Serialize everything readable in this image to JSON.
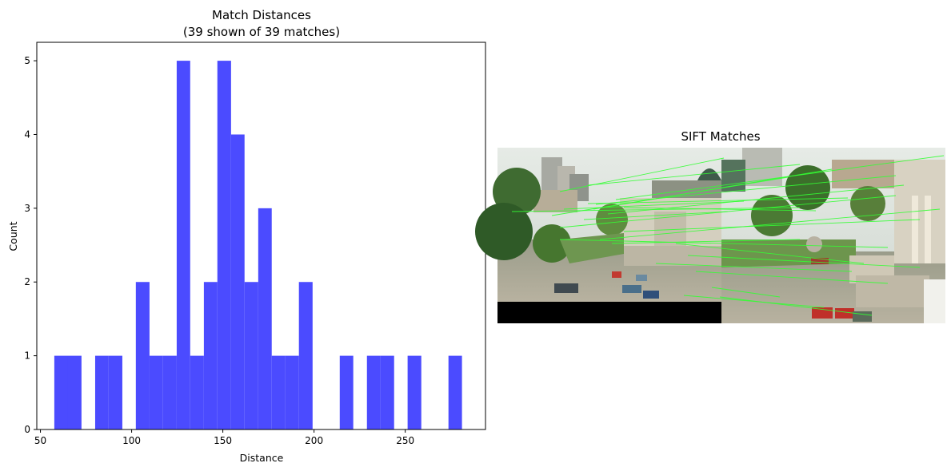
{
  "chart_data": [
    {
      "type": "bar",
      "title": "Match Distances",
      "subtitle": "(39 shown of 39 matches)",
      "xlabel": "Distance",
      "ylabel": "Count",
      "xlim": [
        48,
        294
      ],
      "ylim": [
        0,
        5.25
      ],
      "xticks": [
        50,
        100,
        150,
        200,
        250
      ],
      "yticks": [
        0,
        1,
        2,
        3,
        4,
        5
      ],
      "grid": false,
      "color": "#4b4bff",
      "bins": [
        {
          "x0": 57.6,
          "x1": 65.1,
          "count": 1
        },
        {
          "x0": 65.1,
          "x1": 72.5,
          "count": 1
        },
        {
          "x0": 72.5,
          "x1": 80.0,
          "count": 0
        },
        {
          "x0": 80.0,
          "x1": 87.4,
          "count": 1
        },
        {
          "x0": 87.4,
          "x1": 94.9,
          "count": 1
        },
        {
          "x0": 94.9,
          "x1": 102.3,
          "count": 0
        },
        {
          "x0": 102.3,
          "x1": 109.8,
          "count": 2
        },
        {
          "x0": 109.8,
          "x1": 117.2,
          "count": 1
        },
        {
          "x0": 117.2,
          "x1": 124.7,
          "count": 1
        },
        {
          "x0": 124.7,
          "x1": 132.1,
          "count": 5
        },
        {
          "x0": 132.1,
          "x1": 139.6,
          "count": 1
        },
        {
          "x0": 139.6,
          "x1": 147.0,
          "count": 2
        },
        {
          "x0": 147.0,
          "x1": 154.5,
          "count": 5
        },
        {
          "x0": 154.5,
          "x1": 161.9,
          "count": 4
        },
        {
          "x0": 161.9,
          "x1": 169.4,
          "count": 2
        },
        {
          "x0": 169.4,
          "x1": 176.8,
          "count": 3
        },
        {
          "x0": 176.8,
          "x1": 184.3,
          "count": 1
        },
        {
          "x0": 184.3,
          "x1": 191.7,
          "count": 1
        },
        {
          "x0": 191.7,
          "x1": 199.2,
          "count": 2
        },
        {
          "x0": 199.2,
          "x1": 206.6,
          "count": 0
        },
        {
          "x0": 206.6,
          "x1": 214.1,
          "count": 0
        },
        {
          "x0": 214.1,
          "x1": 221.5,
          "count": 1
        },
        {
          "x0": 221.5,
          "x1": 229.0,
          "count": 0
        },
        {
          "x0": 229.0,
          "x1": 236.4,
          "count": 1
        },
        {
          "x0": 236.4,
          "x1": 243.9,
          "count": 1
        },
        {
          "x0": 243.9,
          "x1": 251.3,
          "count": 0
        },
        {
          "x0": 251.3,
          "x1": 258.8,
          "count": 1
        },
        {
          "x0": 258.8,
          "x1": 266.2,
          "count": 0
        },
        {
          "x0": 266.2,
          "x1": 273.7,
          "count": 0
        },
        {
          "x0": 273.7,
          "x1": 281.1,
          "count": 1
        }
      ]
    },
    {
      "type": "image",
      "title": "SIFT Matches",
      "match_line_color": "#33ff33"
    }
  ]
}
